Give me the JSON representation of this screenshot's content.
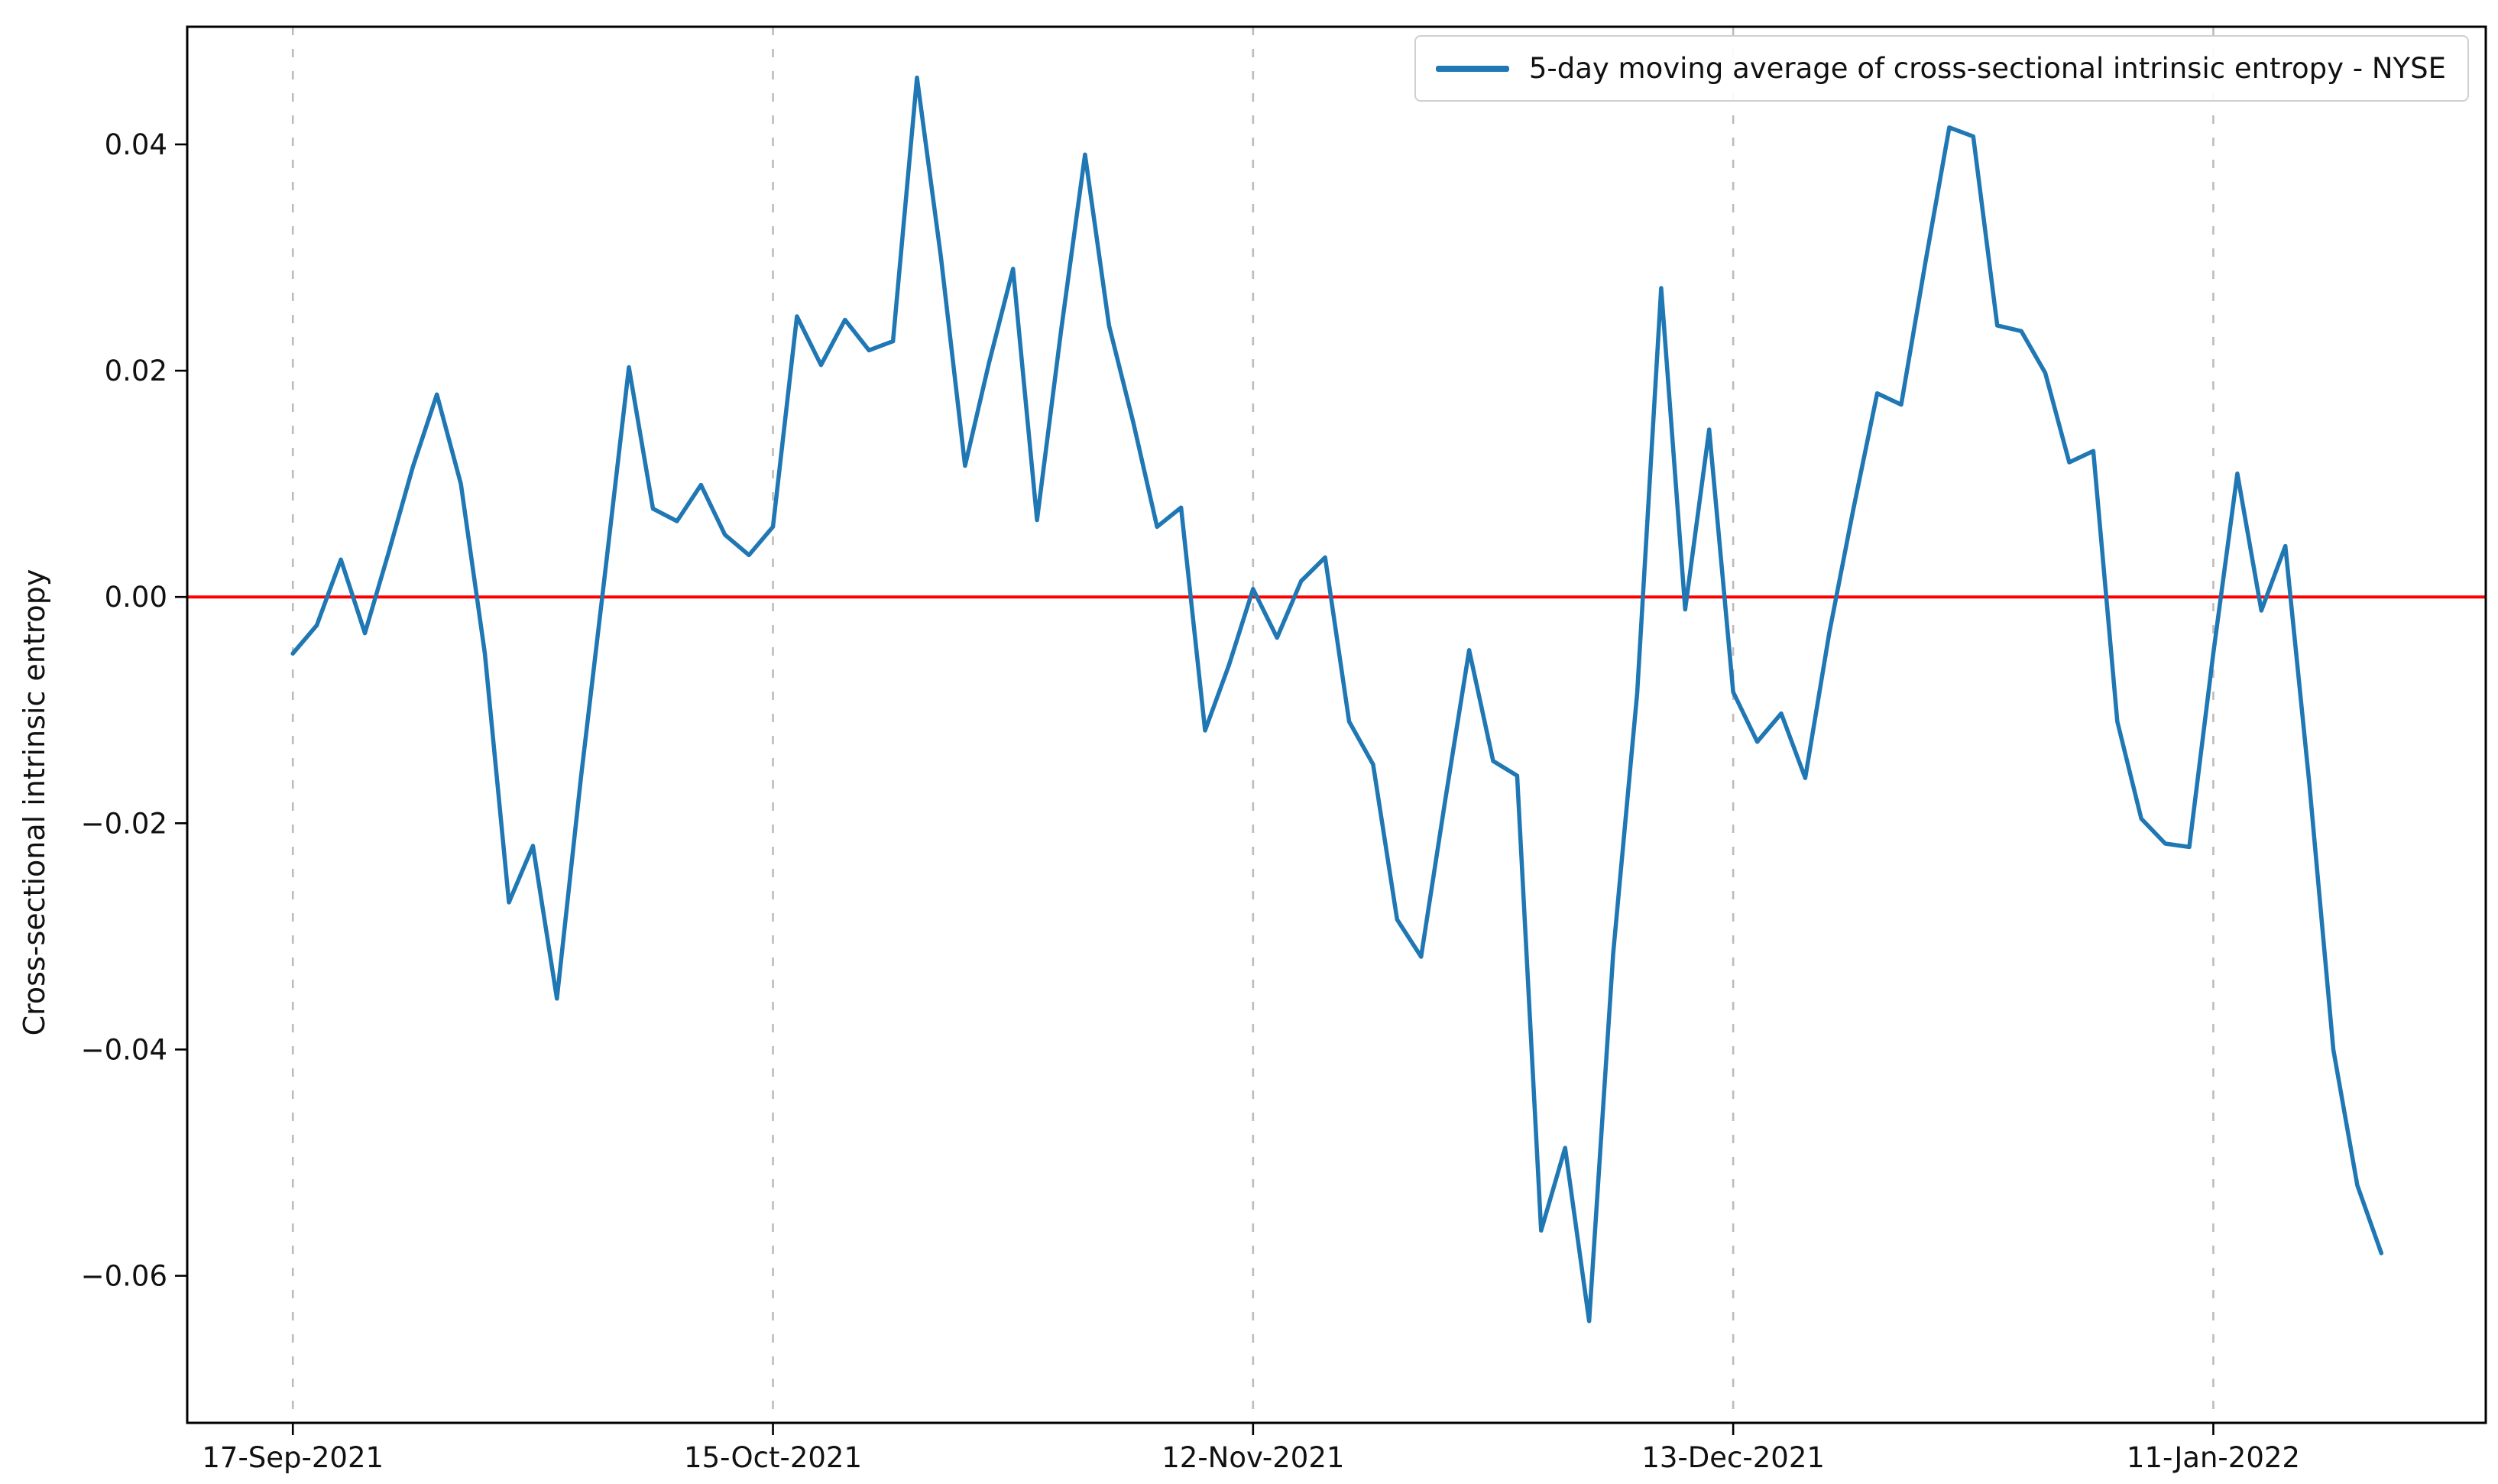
{
  "chart_data": {
    "type": "line",
    "title": "",
    "xlabel": "",
    "ylabel": "Cross-sectional intrinsic entropy",
    "legend": {
      "position": "upper-right",
      "label": "5-day moving average of cross-sectional intrinsic entropy - NYSE"
    },
    "grid": "vertical-dashed-at-x-ticks",
    "x_tick_labels": [
      "17-Sep-2021",
      "15-Oct-2021",
      "12-Nov-2021",
      "13-Dec-2021",
      "11-Jan-2022"
    ],
    "x_tick_day_index": [
      0,
      20,
      40,
      60,
      80
    ],
    "y_tick_labels": [
      "0.04",
      "0.02",
      "0.00",
      "−0.02",
      "−0.04",
      "−0.06"
    ],
    "y_ticks": [
      0.04,
      0.02,
      0.0,
      -0.02,
      -0.04,
      -0.06
    ],
    "xlim_day_index": [
      -4.4,
      91.35
    ],
    "ylim": [
      -0.073,
      0.0504
    ],
    "zero_line": {
      "value": 0.0,
      "color": "#ff0000"
    },
    "series": [
      {
        "name": "5-day moving average of cross-sectional intrinsic entropy - NYSE",
        "color": "#1f77b4",
        "dates": [
          "2021-09-17",
          "2021-09-20",
          "2021-09-21",
          "2021-09-22",
          "2021-09-23",
          "2021-09-24",
          "2021-09-27",
          "2021-09-28",
          "2021-09-29",
          "2021-09-30",
          "2021-10-01",
          "2021-10-04",
          "2021-10-05",
          "2021-10-06",
          "2021-10-07",
          "2021-10-08",
          "2021-10-11",
          "2021-10-12",
          "2021-10-13",
          "2021-10-14",
          "2021-10-15",
          "2021-10-18",
          "2021-10-19",
          "2021-10-20",
          "2021-10-21",
          "2021-10-22",
          "2021-10-25",
          "2021-10-26",
          "2021-10-27",
          "2021-10-28",
          "2021-10-29",
          "2021-11-01",
          "2021-11-02",
          "2021-11-03",
          "2021-11-04",
          "2021-11-05",
          "2021-11-08",
          "2021-11-09",
          "2021-11-10",
          "2021-11-11",
          "2021-11-12",
          "2021-11-15",
          "2021-11-16",
          "2021-11-17",
          "2021-11-18",
          "2021-11-19",
          "2021-11-22",
          "2021-11-23",
          "2021-11-24",
          "2021-11-26",
          "2021-11-29",
          "2021-11-30",
          "2021-12-01",
          "2021-12-02",
          "2021-12-03",
          "2021-12-06",
          "2021-12-07",
          "2021-12-08",
          "2021-12-09",
          "2021-12-10",
          "2021-12-13",
          "2021-12-14",
          "2021-12-15",
          "2021-12-16",
          "2021-12-17",
          "2021-12-20",
          "2021-12-21",
          "2021-12-22",
          "2021-12-23",
          "2021-12-27",
          "2021-12-28",
          "2021-12-29",
          "2021-12-30",
          "2021-12-31",
          "2022-01-03",
          "2022-01-04",
          "2022-01-05",
          "2022-01-06",
          "2022-01-07",
          "2022-01-10",
          "2022-01-11",
          "2022-01-12",
          "2022-01-13",
          "2022-01-14",
          "2022-01-18",
          "2022-01-19",
          "2022-01-20",
          "2022-01-21"
        ],
        "values": [
          -0.005,
          -0.0025,
          0.0033,
          -0.0032,
          0.004,
          0.0115,
          0.0179,
          0.01,
          -0.005,
          -0.027,
          -0.022,
          -0.0355,
          -0.016,
          0.002,
          0.0203,
          0.0078,
          0.0067,
          0.0099,
          0.0055,
          0.0037,
          0.0062,
          0.0248,
          0.0205,
          0.0245,
          0.0218,
          0.0226,
          0.0459,
          0.03,
          0.0116,
          0.0207,
          0.029,
          0.0068,
          0.0235,
          0.0391,
          0.024,
          0.0155,
          0.0062,
          0.0079,
          -0.0118,
          -0.006,
          0.0007,
          -0.0036,
          0.0014,
          0.0035,
          -0.011,
          -0.0148,
          -0.0285,
          -0.0318,
          -0.018,
          -0.0047,
          -0.0145,
          -0.0158,
          -0.056,
          -0.0487,
          -0.064,
          -0.0315,
          -0.0085,
          0.0273,
          -0.0011,
          0.0148,
          -0.0084,
          -0.0128,
          -0.0103,
          -0.016,
          -0.0032,
          0.0077,
          0.018,
          0.017,
          0.0295,
          0.0415,
          0.0407,
          0.024,
          0.0235,
          0.0198,
          0.0119,
          0.0129,
          -0.011,
          -0.0196,
          -0.0218,
          -0.0221,
          -0.005,
          0.0109,
          -0.0012,
          0.0045,
          -0.0165,
          -0.04,
          -0.052,
          -0.058
        ]
      }
    ],
    "style": {
      "line_color": "#1f77b4",
      "zero_line_color": "#ff0000",
      "grid_color": "#bcbcbc",
      "spine_color": "#000000",
      "text_color": "#111111"
    }
  }
}
